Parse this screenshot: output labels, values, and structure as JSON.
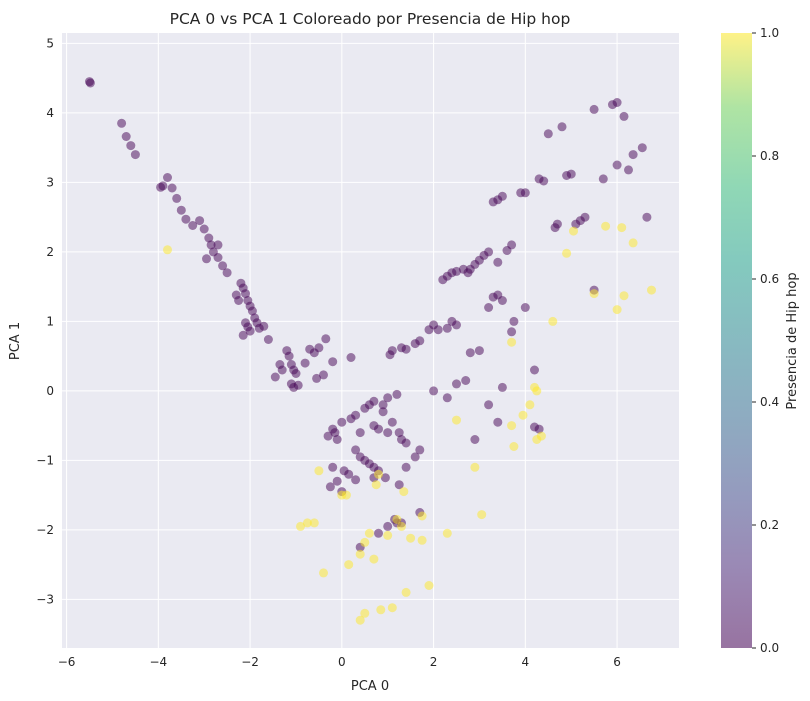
{
  "chart_data": {
    "type": "scatter",
    "title": "PCA 0 vs PCA 1 Coloreado por Presencia de Hip hop",
    "xlabel": "PCA 0",
    "ylabel": "PCA 1",
    "xlim": [
      -6.1,
      7.35
    ],
    "ylim": [
      -3.7,
      5.15
    ],
    "xticks": [
      -6,
      -4,
      -2,
      0,
      2,
      4,
      6
    ],
    "yticks": [
      -3,
      -2,
      -1,
      0,
      1,
      2,
      3,
      4,
      5
    ],
    "grid": true,
    "background": "#eaeaf2",
    "colormap": "viridis",
    "point_alpha": 0.5,
    "colorbar": {
      "label": "Presencia de Hip hop",
      "range": [
        0.0,
        1.0
      ],
      "ticks": [
        "0.0",
        "0.2",
        "0.4",
        "0.6",
        "0.8",
        "1.0"
      ]
    },
    "series": [
      {
        "value": 0,
        "color": "#440154",
        "points": [
          [
            -5.5,
            4.45
          ],
          [
            -5.48,
            4.43
          ],
          [
            -4.8,
            3.85
          ],
          [
            -4.7,
            3.66
          ],
          [
            -4.6,
            3.53
          ],
          [
            -4.5,
            3.4
          ],
          [
            -3.95,
            2.93
          ],
          [
            -3.9,
            2.95
          ],
          [
            -3.8,
            3.07
          ],
          [
            -3.7,
            2.92
          ],
          [
            -3.6,
            2.77
          ],
          [
            -3.5,
            2.6
          ],
          [
            -3.4,
            2.47
          ],
          [
            -3.25,
            2.38
          ],
          [
            -3.1,
            2.45
          ],
          [
            -3.0,
            2.33
          ],
          [
            -2.9,
            2.2
          ],
          [
            -2.85,
            2.1
          ],
          [
            -2.8,
            2.0
          ],
          [
            -2.7,
            1.92
          ],
          [
            -2.6,
            1.8
          ],
          [
            -2.5,
            1.7
          ],
          [
            -2.95,
            1.9
          ],
          [
            -2.7,
            2.1
          ],
          [
            -2.3,
            1.38
          ],
          [
            -2.25,
            1.3
          ],
          [
            -2.2,
            1.55
          ],
          [
            -2.15,
            1.48
          ],
          [
            -2.1,
            1.4
          ],
          [
            -2.05,
            1.3
          ],
          [
            -2.0,
            1.22
          ],
          [
            -1.95,
            1.15
          ],
          [
            -1.9,
            1.05
          ],
          [
            -1.85,
            0.98
          ],
          [
            -1.8,
            0.9
          ],
          [
            -2.1,
            0.98
          ],
          [
            -2.05,
            0.92
          ],
          [
            -2.0,
            0.86
          ],
          [
            -2.15,
            0.8
          ],
          [
            -1.7,
            0.93
          ],
          [
            -1.6,
            0.74
          ],
          [
            -1.45,
            0.2
          ],
          [
            -1.35,
            0.38
          ],
          [
            -1.3,
            0.3
          ],
          [
            -1.2,
            0.58
          ],
          [
            -1.15,
            0.5
          ],
          [
            -1.1,
            0.38
          ],
          [
            -1.05,
            0.3
          ],
          [
            -1.0,
            0.25
          ],
          [
            -1.1,
            0.1
          ],
          [
            -1.05,
            0.05
          ],
          [
            -0.95,
            0.08
          ],
          [
            -0.8,
            0.4
          ],
          [
            -0.7,
            0.6
          ],
          [
            -0.6,
            0.55
          ],
          [
            -0.5,
            0.62
          ],
          [
            -0.35,
            0.75
          ],
          [
            -0.55,
            0.18
          ],
          [
            -0.4,
            0.23
          ],
          [
            -0.2,
            0.42
          ],
          [
            0.2,
            0.48
          ],
          [
            -0.2,
            -0.55
          ],
          [
            -0.3,
            -0.65
          ],
          [
            -0.15,
            -0.6
          ],
          [
            -0.1,
            -0.7
          ],
          [
            0.0,
            -0.45
          ],
          [
            0.2,
            -0.4
          ],
          [
            0.3,
            -0.35
          ],
          [
            0.4,
            -0.6
          ],
          [
            0.5,
            -0.25
          ],
          [
            0.6,
            -0.2
          ],
          [
            0.7,
            -0.5
          ],
          [
            0.8,
            -0.55
          ],
          [
            0.9,
            -0.3
          ],
          [
            1.0,
            -0.6
          ],
          [
            1.1,
            -0.45
          ],
          [
            1.25,
            -0.6
          ],
          [
            1.3,
            -0.7
          ],
          [
            1.4,
            -0.75
          ],
          [
            0.7,
            -0.15
          ],
          [
            0.9,
            -0.2
          ],
          [
            1.0,
            -0.1
          ],
          [
            1.2,
            -0.05
          ],
          [
            0.3,
            -0.85
          ],
          [
            0.4,
            -0.95
          ],
          [
            0.5,
            -1.0
          ],
          [
            0.6,
            -1.05
          ],
          [
            0.7,
            -1.1
          ],
          [
            0.8,
            -1.15
          ],
          [
            1.4,
            -1.1
          ],
          [
            1.6,
            -0.95
          ],
          [
            1.7,
            -0.85
          ],
          [
            -0.2,
            -1.1
          ],
          [
            -0.1,
            -1.3
          ],
          [
            0.05,
            -1.15
          ],
          [
            0.15,
            -1.2
          ],
          [
            -0.25,
            -1.38
          ],
          [
            0.0,
            -1.45
          ],
          [
            0.3,
            -1.28
          ],
          [
            0.7,
            -1.25
          ],
          [
            0.95,
            -1.25
          ],
          [
            1.25,
            -1.35
          ],
          [
            1.05,
            0.52
          ],
          [
            1.1,
            0.58
          ],
          [
            1.3,
            0.62
          ],
          [
            1.4,
            0.6
          ],
          [
            1.6,
            0.68
          ],
          [
            1.7,
            0.72
          ],
          [
            1.9,
            0.88
          ],
          [
            2.0,
            0.95
          ],
          [
            2.2,
            1.6
          ],
          [
            2.3,
            1.65
          ],
          [
            2.4,
            1.7
          ],
          [
            2.5,
            1.72
          ],
          [
            2.65,
            1.75
          ],
          [
            2.75,
            1.7
          ],
          [
            2.8,
            1.75
          ],
          [
            2.9,
            1.82
          ],
          [
            3.0,
            1.88
          ],
          [
            3.1,
            1.95
          ],
          [
            3.2,
            2.0
          ],
          [
            3.4,
            1.85
          ],
          [
            3.6,
            2.02
          ],
          [
            3.7,
            2.1
          ],
          [
            3.3,
            2.72
          ],
          [
            3.4,
            2.75
          ],
          [
            3.5,
            2.8
          ],
          [
            3.9,
            2.85
          ],
          [
            4.0,
            2.85
          ],
          [
            4.3,
            3.05
          ],
          [
            4.4,
            3.02
          ],
          [
            4.9,
            3.1
          ],
          [
            5.0,
            3.12
          ],
          [
            4.5,
            3.7
          ],
          [
            4.8,
            3.8
          ],
          [
            5.5,
            4.05
          ],
          [
            5.9,
            4.12
          ],
          [
            6.0,
            4.15
          ],
          [
            6.15,
            3.95
          ],
          [
            6.35,
            3.4
          ],
          [
            6.55,
            3.5
          ],
          [
            6.0,
            3.25
          ],
          [
            6.25,
            3.18
          ],
          [
            5.7,
            3.05
          ],
          [
            5.3,
            2.5
          ],
          [
            5.2,
            2.45
          ],
          [
            5.1,
            2.4
          ],
          [
            4.65,
            2.35
          ],
          [
            4.7,
            2.4
          ],
          [
            6.65,
            2.5
          ],
          [
            2.4,
            1.0
          ],
          [
            2.5,
            0.95
          ],
          [
            2.3,
            0.9
          ],
          [
            2.1,
            0.88
          ],
          [
            3.3,
            1.35
          ],
          [
            3.4,
            1.38
          ],
          [
            3.5,
            1.3
          ],
          [
            3.2,
            1.2
          ],
          [
            2.8,
            0.55
          ],
          [
            3.0,
            0.58
          ],
          [
            3.7,
            0.85
          ],
          [
            3.75,
            1.0
          ],
          [
            4.0,
            1.2
          ],
          [
            5.5,
            1.45
          ],
          [
            4.2,
            0.3
          ],
          [
            2.3,
            -0.1
          ],
          [
            3.2,
            -0.2
          ],
          [
            3.4,
            -0.45
          ],
          [
            4.2,
            -0.52
          ],
          [
            4.3,
            -0.55
          ],
          [
            2.0,
            0.0
          ],
          [
            2.5,
            0.1
          ],
          [
            2.7,
            0.15
          ],
          [
            2.9,
            -0.7
          ],
          [
            1.15,
            -1.85
          ],
          [
            1.3,
            -1.9
          ],
          [
            1.7,
            -1.75
          ],
          [
            0.4,
            -2.25
          ],
          [
            0.8,
            -2.05
          ],
          [
            1.0,
            -1.95
          ],
          [
            1.2,
            -1.9
          ],
          [
            3.5,
            0.05
          ]
        ]
      },
      {
        "value": 1,
        "color": "#fde725",
        "points": [
          [
            -3.8,
            2.03
          ],
          [
            -0.9,
            -1.95
          ],
          [
            -0.75,
            -1.9
          ],
          [
            -0.6,
            -1.9
          ],
          [
            -0.5,
            -1.15
          ],
          [
            -0.4,
            -2.62
          ],
          [
            0.0,
            -1.5
          ],
          [
            0.1,
            -1.5
          ],
          [
            0.15,
            -2.5
          ],
          [
            0.4,
            -2.35
          ],
          [
            0.4,
            -3.3
          ],
          [
            0.5,
            -2.18
          ],
          [
            0.5,
            -3.2
          ],
          [
            0.6,
            -2.05
          ],
          [
            0.7,
            -2.42
          ],
          [
            0.75,
            -1.35
          ],
          [
            0.8,
            -1.2
          ],
          [
            0.85,
            -3.15
          ],
          [
            1.0,
            -2.08
          ],
          [
            1.1,
            -3.12
          ],
          [
            1.2,
            -1.85
          ],
          [
            1.3,
            -1.95
          ],
          [
            1.35,
            -1.45
          ],
          [
            1.4,
            -2.9
          ],
          [
            1.5,
            -2.12
          ],
          [
            1.75,
            -2.15
          ],
          [
            1.75,
            -1.8
          ],
          [
            1.9,
            -2.8
          ],
          [
            2.3,
            -2.05
          ],
          [
            2.5,
            -0.42
          ],
          [
            2.9,
            -1.1
          ],
          [
            3.05,
            -1.78
          ],
          [
            3.7,
            0.7
          ],
          [
            3.75,
            -0.8
          ],
          [
            4.2,
            0.05
          ],
          [
            4.25,
            0.0
          ],
          [
            4.25,
            -0.7
          ],
          [
            4.35,
            -0.65
          ],
          [
            4.6,
            1.0
          ],
          [
            4.9,
            1.98
          ],
          [
            5.05,
            2.3
          ],
          [
            5.5,
            1.4
          ],
          [
            5.75,
            2.37
          ],
          [
            6.0,
            1.17
          ],
          [
            6.1,
            2.35
          ],
          [
            6.15,
            1.37
          ],
          [
            6.35,
            2.13
          ],
          [
            6.75,
            1.45
          ],
          [
            3.95,
            -0.35
          ],
          [
            3.7,
            -0.5
          ],
          [
            4.1,
            -0.2
          ]
        ]
      }
    ]
  }
}
